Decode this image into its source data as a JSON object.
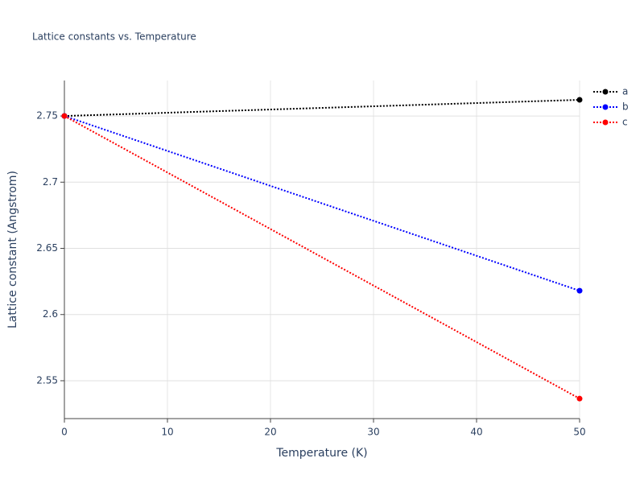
{
  "chart_data": {
    "type": "line",
    "title": "Lattice constants vs. Temperature",
    "x_label": "Temperature (K)",
    "y_label": "Lattice constant (Angstrom)",
    "x": [
      0,
      50
    ],
    "series": [
      {
        "name": "a",
        "color": "#000000",
        "values": [
          2.75,
          2.7622
        ]
      },
      {
        "name": "b",
        "color": "#0000ff",
        "values": [
          2.75,
          2.618
        ]
      },
      {
        "name": "c",
        "color": "#ff0000",
        "values": [
          2.75,
          2.5365
        ]
      }
    ],
    "xlim": [
      0,
      50
    ],
    "xticks": [
      0,
      10,
      20,
      30,
      40,
      50
    ],
    "ylim": [
      2.5214,
      2.7768
    ],
    "yticks": [
      2.55,
      2.6,
      2.65,
      2.7,
      2.75
    ],
    "grid": true,
    "legend": "top-right"
  }
}
